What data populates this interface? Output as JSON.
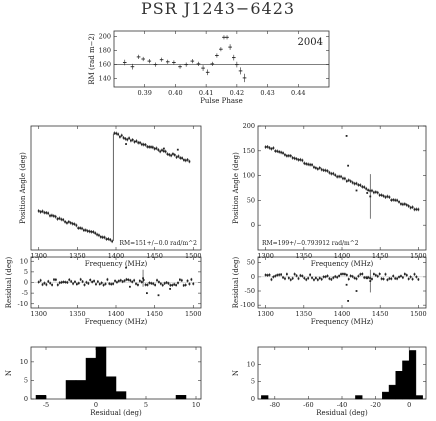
{
  "title": "PSR J1243−6423",
  "chart_data": [
    {
      "id": "rm-phase",
      "type": "scatter",
      "annotation": "2004",
      "xlabel": "Pulse Phase",
      "ylabel": "RM (rad m−2)",
      "xlim": [
        0.38,
        0.45
      ],
      "ylim": [
        128,
        208
      ],
      "xticks": [
        0.39,
        0.4,
        0.41,
        0.42,
        0.43,
        0.44
      ],
      "xtick_labels": [
        "0.39",
        "0.40",
        "0.41",
        "0.42",
        "0.43",
        "0.44"
      ],
      "yticks": [
        140,
        160,
        180,
        200
      ],
      "ytick_labels": [
        "140",
        "160",
        "180",
        "200"
      ],
      "reference_line": 160,
      "points": [
        {
          "x": 0.3835,
          "y": 163,
          "e": 4
        },
        {
          "x": 0.386,
          "y": 157,
          "e": 4
        },
        {
          "x": 0.388,
          "y": 171,
          "e": 3
        },
        {
          "x": 0.3895,
          "y": 168,
          "e": 3
        },
        {
          "x": 0.3915,
          "y": 165,
          "e": 3
        },
        {
          "x": 0.3935,
          "y": 160,
          "e": 3
        },
        {
          "x": 0.3955,
          "y": 167,
          "e": 3
        },
        {
          "x": 0.3975,
          "y": 164,
          "e": 3
        },
        {
          "x": 0.3995,
          "y": 163,
          "e": 3
        },
        {
          "x": 0.4015,
          "y": 157,
          "e": 3
        },
        {
          "x": 0.4035,
          "y": 160,
          "e": 3
        },
        {
          "x": 0.4055,
          "y": 165,
          "e": 3
        },
        {
          "x": 0.4075,
          "y": 161,
          "e": 3
        },
        {
          "x": 0.409,
          "y": 155,
          "e": 4
        },
        {
          "x": 0.4105,
          "y": 149,
          "e": 4
        },
        {
          "x": 0.412,
          "y": 161,
          "e": 3
        },
        {
          "x": 0.4135,
          "y": 173,
          "e": 3
        },
        {
          "x": 0.4148,
          "y": 182,
          "e": 3
        },
        {
          "x": 0.4158,
          "y": 199,
          "e": 3
        },
        {
          "x": 0.4168,
          "y": 199,
          "e": 3
        },
        {
          "x": 0.4178,
          "y": 185,
          "e": 4
        },
        {
          "x": 0.419,
          "y": 170,
          "e": 4
        },
        {
          "x": 0.42,
          "y": 160,
          "e": 4
        },
        {
          "x": 0.4212,
          "y": 151,
          "e": 5
        },
        {
          "x": 0.4225,
          "y": 141,
          "e": 6
        }
      ]
    },
    {
      "id": "pa-freq-left",
      "type": "scatter",
      "annotation": "RM=151+/−0.0  rad/m^2",
      "xlabel": "Frequency (MHz)",
      "ylabel": "Position Angle (deg)",
      "xlim": [
        1290,
        1510
      ],
      "ylim": [
        -35,
        75
      ],
      "xticks": [
        1300,
        1350,
        1400,
        1450,
        1500
      ],
      "xtick_labels": [
        "1300",
        "1350",
        "1400",
        "1450",
        "1500"
      ],
      "yticks": [],
      "ytick_labels": [],
      "segments": [
        {
          "x0": 1300,
          "x1": 1395,
          "y0": 0,
          "y1": -27,
          "n": 40
        },
        {
          "x0": 1398,
          "x1": 1495,
          "y0": 68,
          "y1": 44,
          "n": 42
        }
      ],
      "outliers": [
        {
          "x": 1413,
          "y": 59
        },
        {
          "x": 1462,
          "y": 55
        },
        {
          "x": 1480,
          "y": 54
        }
      ]
    },
    {
      "id": "pa-freq-right",
      "type": "scatter",
      "annotation": "RM=199+/−0.793912  rad/m^2",
      "xlabel": "Frequency (MHz)",
      "ylabel": "Position Angle (deg)",
      "xlim": [
        1290,
        1510
      ],
      "ylim": [
        -50,
        200
      ],
      "xticks": [
        1300,
        1350,
        1400,
        1450,
        1500
      ],
      "xtick_labels": [
        "1300",
        "1350",
        "1400",
        "1450",
        "1500"
      ],
      "yticks": [
        0,
        50,
        100,
        150,
        200
      ],
      "ytick_labels": [
        "0",
        "50",
        "100",
        "150",
        "200"
      ],
      "segments": [
        {
          "x0": 1300,
          "x1": 1500,
          "y0": 160,
          "y1": 30,
          "n": 80
        }
      ],
      "outliers": [
        {
          "x": 1406,
          "y": 180
        },
        {
          "x": 1408,
          "y": 120
        },
        {
          "x": 1419,
          "y": 70
        },
        {
          "x": 1433,
          "y": 65
        }
      ],
      "error_bars": [
        {
          "x": 1437,
          "y": 58,
          "e": 45
        }
      ]
    },
    {
      "id": "resid-left",
      "type": "scatter",
      "xlabel": "Frequency (MHz)",
      "ylabel": "Residual (deg)",
      "xlim": [
        1290,
        1510
      ],
      "ylim": [
        -12,
        12
      ],
      "xticks": [
        1300,
        1350,
        1400,
        1450,
        1500
      ],
      "xtick_labels": [
        "1300",
        "1350",
        "1400",
        "1450",
        "1500"
      ],
      "yticks": [
        -10,
        -5,
        0,
        5,
        10
      ],
      "ytick_labels": [
        "-10",
        "-5",
        "0",
        "5",
        "10"
      ],
      "n": 82,
      "outliers": [
        {
          "x": 1413,
          "y": 7
        },
        {
          "x": 1418,
          "y": -2
        },
        {
          "x": 1440,
          "y": -5
        },
        {
          "x": 1455,
          "y": -6
        },
        {
          "x": 1470,
          "y": -3
        }
      ],
      "error_bars": [
        {
          "x": 1435,
          "y": 2,
          "e": 4
        }
      ]
    },
    {
      "id": "resid-right",
      "type": "scatter",
      "xlabel": "Frequency (MHz)",
      "ylabel": "Residual (deg)",
      "xlim": [
        1290,
        1510
      ],
      "ylim": [
        -110,
        70
      ],
      "xticks": [
        1300,
        1350,
        1400,
        1450,
        1500
      ],
      "xtick_labels": [
        "1300",
        "1350",
        "1400",
        "1450",
        "1500"
      ],
      "yticks": [
        -100,
        -50,
        0,
        50
      ],
      "ytick_labels": [
        "-100",
        "-50",
        "0",
        "50"
      ],
      "n": 80,
      "outliers": [
        {
          "x": 1406,
          "y": -28
        },
        {
          "x": 1408,
          "y": -85
        },
        {
          "x": 1419,
          "y": -50
        },
        {
          "x": 1433,
          "y": -5
        }
      ],
      "error_bars": [
        {
          "x": 1437,
          "y": -15,
          "e": 40
        }
      ]
    },
    {
      "id": "hist-left",
      "type": "bar",
      "xlabel": "Residual (deg)",
      "ylabel": "N",
      "xlim": [
        -6.5,
        10.5
      ],
      "ylim": [
        0,
        14
      ],
      "xticks": [
        -5,
        0,
        5,
        10
      ],
      "xtick_labels": [
        "-5",
        "0",
        "5",
        "10"
      ],
      "yticks": [
        0,
        5,
        10
      ],
      "ytick_labels": [
        "0",
        "5",
        "10"
      ],
      "bin_width": 1,
      "bins": [
        {
          "x0": -6,
          "count": 1
        },
        {
          "x0": -3,
          "count": 5
        },
        {
          "x0": -2,
          "count": 5
        },
        {
          "x0": -1,
          "count": 11
        },
        {
          "x0": 0,
          "count": 14
        },
        {
          "x0": 1,
          "count": 6
        },
        {
          "x0": 2,
          "count": 2
        },
        {
          "x0": 8,
          "count": 1
        }
      ]
    },
    {
      "id": "hist-right",
      "type": "bar",
      "xlabel": "Residual (deg)",
      "ylabel": "N",
      "xlim": [
        -90,
        10
      ],
      "ylim": [
        0,
        15
      ],
      "xticks": [
        -80,
        -60,
        -40,
        -20,
        0
      ],
      "xtick_labels": [
        "-80",
        "-60",
        "-40",
        "-20",
        "0"
      ],
      "yticks": [
        0,
        5,
        10
      ],
      "ytick_labels": [
        "0",
        "5",
        "10"
      ],
      "bin_width": 4,
      "bins": [
        {
          "x0": -88,
          "count": 1
        },
        {
          "x0": -32,
          "count": 1
        },
        {
          "x0": -16,
          "count": 2
        },
        {
          "x0": -12,
          "count": 4
        },
        {
          "x0": -8,
          "count": 8
        },
        {
          "x0": -4,
          "count": 11
        },
        {
          "x0": 0,
          "count": 14
        },
        {
          "x0": 4,
          "count": 1
        }
      ]
    }
  ]
}
